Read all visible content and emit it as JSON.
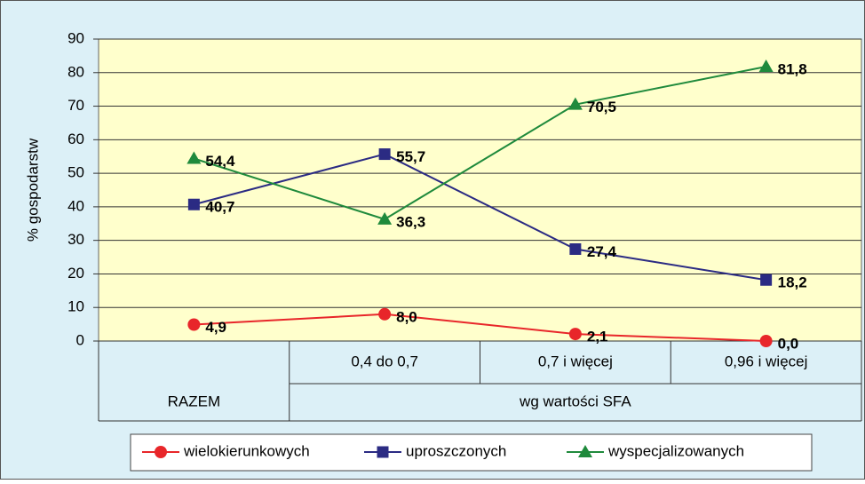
{
  "chart_data": {
    "type": "line",
    "y_label": "% gospodarstw",
    "categories": [
      null,
      "0,4 do 0,7",
      "0,7 i więcej",
      "0,96 i więcej"
    ],
    "category_groups": [
      "RAZEM",
      "wg wartości SFA",
      "wg wartości SFA",
      "wg wartości SFA"
    ],
    "ylim": [
      0,
      90
    ],
    "yticks": [
      0,
      10,
      20,
      30,
      40,
      50,
      60,
      70,
      80,
      90
    ],
    "legend": "bottom",
    "series": [
      {
        "name": "wielokierunkowych",
        "color": "#e8262a",
        "marker": "circle",
        "values": [
          4.9,
          8.0,
          2.1,
          0.0
        ],
        "value_labels": [
          "4,9",
          "8,0",
          "2,1",
          "0,0"
        ]
      },
      {
        "name": "uproszczonych",
        "color": "#2b2b83",
        "marker": "square",
        "values": [
          40.7,
          55.7,
          27.4,
          18.2
        ],
        "value_labels": [
          "40,7",
          "55,7",
          "27,4",
          "18,2"
        ]
      },
      {
        "name": "wyspecjalizowanych",
        "color": "#1f8a3c",
        "marker": "triangle",
        "values": [
          54.4,
          36.3,
          70.5,
          81.8
        ],
        "value_labels": [
          "54,4",
          "36,3",
          "70,5",
          "81,8"
        ]
      }
    ]
  }
}
